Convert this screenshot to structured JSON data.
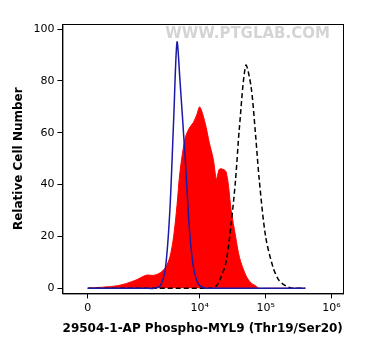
{
  "chart_data": {
    "type": "line",
    "x_label": "29504-1-AP Phospho-MYL9 (Thr19/Ser20)",
    "y_label": "Relative Cell Number",
    "annotations": [
      "WWW.PTGLAB.COM"
    ],
    "x": [
      0,
      500,
      1000,
      1500,
      2000,
      2500,
      3000,
      3500,
      4000,
      4500,
      5000,
      6000,
      7000,
      8000,
      9000,
      10000,
      12000,
      14000,
      16000,
      18000,
      20000,
      25000,
      30000,
      35000,
      40000,
      50000,
      60000,
      70000,
      80000,
      100000,
      130000,
      160000,
      200000,
      250000,
      300000,
      400000
    ],
    "series": [
      {
        "type": "area",
        "color": "#ff0000",
        "line_style": "solid",
        "values": [
          0,
          1,
          3,
          5,
          5,
          6,
          8,
          12,
          20,
          32,
          45,
          58,
          62,
          64,
          67,
          70,
          64,
          56,
          50,
          42,
          46,
          45,
          30,
          20,
          12,
          5,
          2,
          1,
          0,
          0,
          0,
          0,
          0,
          0,
          0,
          0
        ]
      },
      {
        "type": "line",
        "color": "#1a1aa6",
        "line_style": "solid",
        "values": [
          0,
          0,
          0,
          0,
          0,
          1,
          8,
          30,
          65,
          95,
          80,
          50,
          22,
          8,
          3,
          1,
          0,
          0,
          0,
          0,
          0,
          0,
          0,
          0,
          0,
          0,
          0,
          0,
          0,
          0,
          0,
          0,
          0,
          0,
          0,
          0
        ]
      },
      {
        "type": "line",
        "color": "#000000",
        "line_style": "dashed",
        "values": [
          0,
          0,
          0,
          0,
          0,
          0,
          0,
          0,
          0,
          0,
          0,
          0,
          0,
          0,
          0,
          0,
          0,
          0,
          0,
          1,
          3,
          10,
          25,
          42,
          62,
          86,
          78,
          60,
          42,
          20,
          8,
          3,
          1,
          0,
          0,
          0
        ]
      }
    ],
    "xlim": [
      -400,
      1500000
    ],
    "xticks": [
      0,
      {
        "value": 10000,
        "label": "10⁴"
      },
      {
        "value": 100000,
        "label": "10⁵"
      },
      {
        "value": 1000000,
        "label": "10⁶"
      }
    ],
    "ylim": [
      -2,
      102
    ],
    "yticks": [
      0,
      20,
      40,
      60,
      80,
      100
    ],
    "grid": false
  }
}
